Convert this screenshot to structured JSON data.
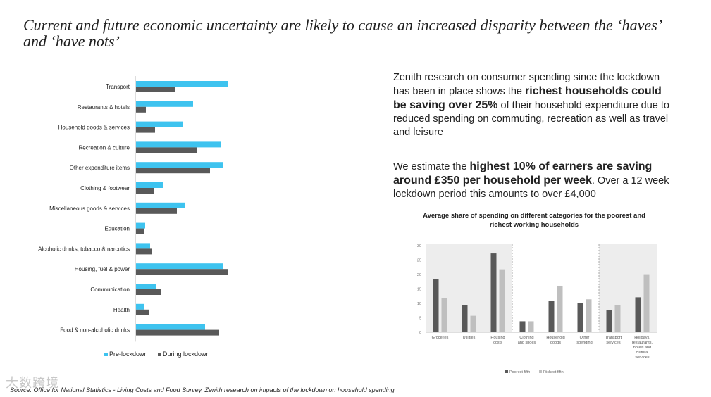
{
  "slide": {
    "title": "Current and future economic uncertainty are likely to cause an increased disparity between the ‘haves’ and ‘have nots’",
    "para1": {
      "pre": "Zenith research on consumer spending since the lockdown has been in place shows the ",
      "bold": "richest households could be saving over 25%",
      "post": " of their household expenditure due to reduced spending on commuting, recreation as well as travel and leisure"
    },
    "para2": {
      "pre": "We estimate the ",
      "bold": "highest 10% of earners are saving around £350 per household per week",
      "post": ". Over a 12 week lockdown period this amounts to over £4,000"
    },
    "source": "Source: Office for National Statistics - Living Costs and Food Survey, Zenith research on impacts of the lockdown on household spending",
    "watermark": "大数跨境"
  },
  "colors": {
    "pre": "#3ec3ef",
    "during": "#595959",
    "poorest": "#595959",
    "richest": "#bfbfbf",
    "panel": "#ededed"
  },
  "chart_data": [
    {
      "type": "bar",
      "orientation": "horizontal",
      "categories": [
        "Transport",
        "Restaurants & hotels",
        "Household goods & services",
        "Recreation & culture",
        "Other expenditure items",
        "Clothing & footwear",
        "Miscellaneous goods & services",
        "Education",
        "Alcoholic drinks, tobacco & narcotics",
        "Housing, fuel & power",
        "Communication",
        "Health",
        "Food & non-alcoholic drinks"
      ],
      "series": [
        {
          "name": "Pre-lockdown",
          "values": [
            131,
            81,
            66,
            121,
            123,
            39,
            70,
            13,
            20,
            123,
            28,
            11,
            98
          ]
        },
        {
          "name": "During lockdown",
          "values": [
            55,
            14,
            27,
            87,
            105,
            25,
            58,
            11,
            23,
            130,
            36,
            19,
            118
          ]
        }
      ],
      "title": "",
      "xlabel": "",
      "ylabel": "",
      "legend": "bottom",
      "grid": false
    },
    {
      "type": "bar",
      "title": "Average share of spending on different categories for the poorest and richest working households",
      "categories": [
        "Groceries",
        "Utilities",
        "Housing costs",
        "Clothing and shoes",
        "Household goods",
        "Other spending",
        "Transport services",
        "Holidays, restaurants, hotels and cultural services"
      ],
      "series": [
        {
          "name": "Poorest fifth",
          "values": [
            18.3,
            9.3,
            27.3,
            3.8,
            10.9,
            10.2,
            7.6,
            12.1
          ]
        },
        {
          "name": "Richest fifth",
          "values": [
            11.8,
            5.7,
            21.8,
            3.8,
            16.1,
            11.4,
            9.3,
            20.1
          ]
        }
      ],
      "yticks": [
        0,
        5,
        10,
        15,
        20,
        25,
        30
      ],
      "ylim": [
        0,
        30
      ],
      "legend": "bottom-left",
      "grid": false
    }
  ]
}
